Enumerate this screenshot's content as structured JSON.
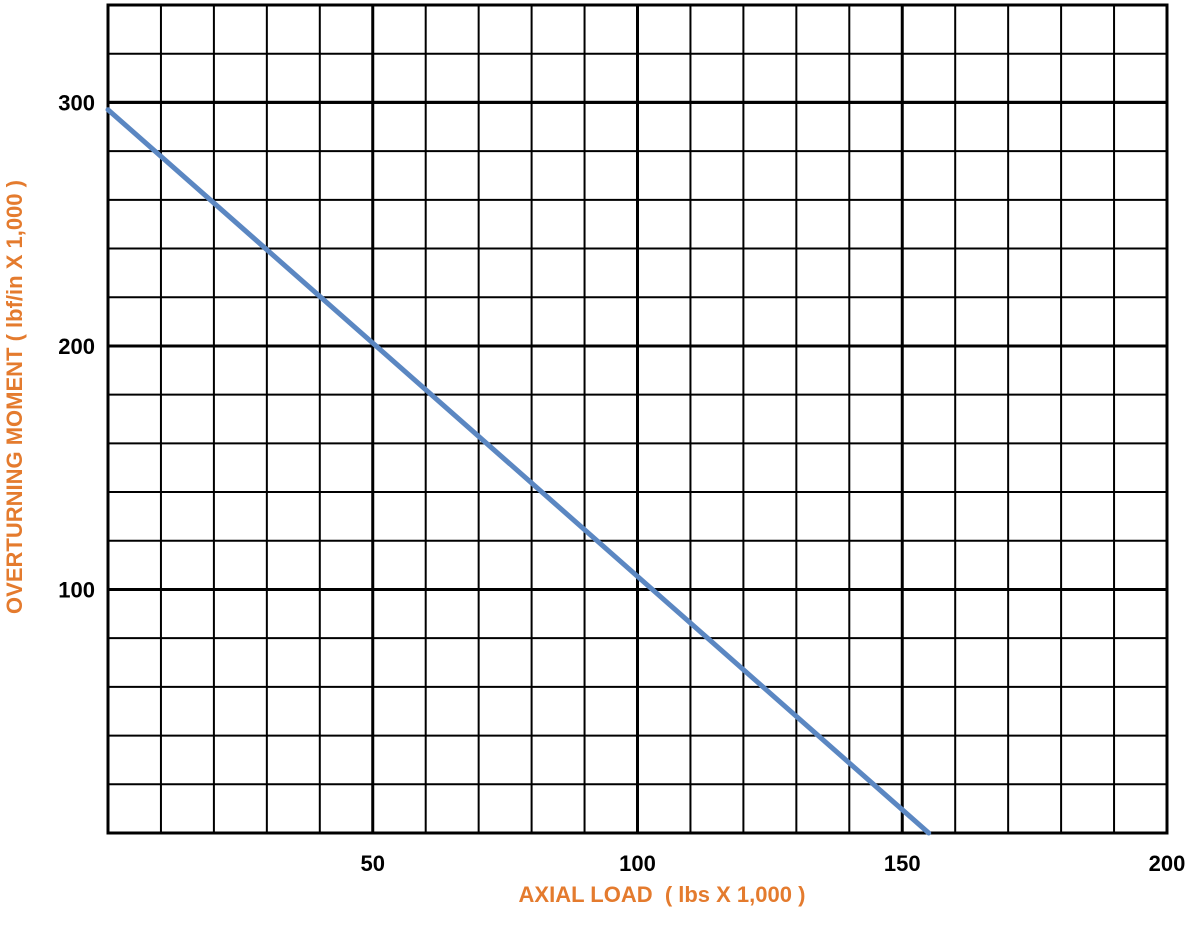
{
  "chart_data": {
    "type": "line",
    "title": "",
    "xlabel": "AXIAL LOAD  ( lbs X 1,000 )",
    "ylabel": "OVERTURNING MOMENT ( lbf/in X 1,000 )",
    "xlim": [
      0,
      200
    ],
    "ylim": [
      0,
      340
    ],
    "x_ticks": [
      50,
      100,
      150,
      200
    ],
    "x_tick_labels": [
      "50",
      "100",
      "150",
      "200"
    ],
    "y_ticks": [
      100,
      200,
      300
    ],
    "y_tick_labels": [
      "100",
      "200",
      "300"
    ],
    "grid": true,
    "grid_x_step": 10,
    "grid_y_step": 20,
    "legend": "none",
    "series": [
      {
        "x": [
          0,
          155
        ],
        "y": [
          297,
          0
        ]
      }
    ],
    "colors": {
      "line": "#5b87c2",
      "grid": "#000000",
      "axis_title": "#e47b2e",
      "tick_label": "#000000"
    }
  }
}
